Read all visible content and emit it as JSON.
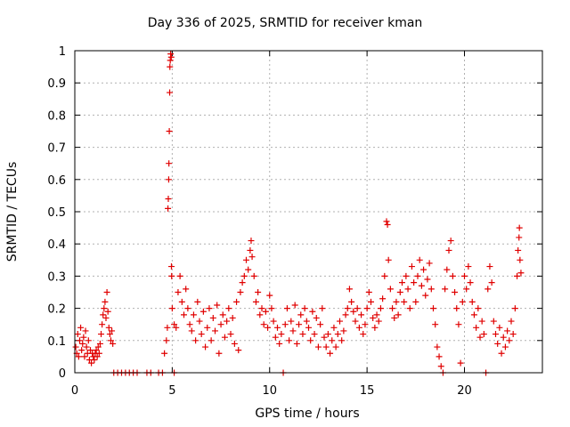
{
  "chart_data": {
    "type": "scatter",
    "title": "Day 336 of 2025, SRMTID for receiver kman",
    "xlabel": "GPS time / hours",
    "ylabel": "SRMTID / TECUs",
    "xlim": [
      0,
      24
    ],
    "ylim": [
      0,
      1
    ],
    "xticks": [
      0,
      5,
      10,
      15,
      20
    ],
    "xtick_labels": [
      "0",
      "5",
      "10",
      "15",
      "20"
    ],
    "yticks": [
      0,
      0.1,
      0.2,
      0.3,
      0.4,
      0.5,
      0.6,
      0.7,
      0.8,
      0.9,
      1
    ],
    "ytick_labels": [
      "0",
      "0.1",
      "0.2",
      "0.3",
      "0.4",
      "0.5",
      "0.6",
      "0.7",
      "0.8",
      "0.9",
      "1"
    ],
    "grid": true,
    "marker": "+",
    "color": "#e00000",
    "series": [
      {
        "name": "SRMTID",
        "points": [
          [
            0.05,
            0.08
          ],
          [
            0.1,
            0.06
          ],
          [
            0.15,
            0.12
          ],
          [
            0.2,
            0.05
          ],
          [
            0.25,
            0.1
          ],
          [
            0.3,
            0.14
          ],
          [
            0.35,
            0.07
          ],
          [
            0.4,
            0.09
          ],
          [
            0.45,
            0.11
          ],
          [
            0.5,
            0.05
          ],
          [
            0.55,
            0.13
          ],
          [
            0.6,
            0.08
          ],
          [
            0.65,
            0.06
          ],
          [
            0.7,
            0.1
          ],
          [
            0.75,
            0.04
          ],
          [
            0.8,
            0.07
          ],
          [
            0.85,
            0.03
          ],
          [
            0.9,
            0.06
          ],
          [
            0.95,
            0.05
          ],
          [
            1.0,
            0.04
          ],
          [
            1.05,
            0.06
          ],
          [
            1.1,
            0.07
          ],
          [
            1.15,
            0.05
          ],
          [
            1.2,
            0.08
          ],
          [
            1.25,
            0.06
          ],
          [
            1.3,
            0.09
          ],
          [
            1.35,
            0.12
          ],
          [
            1.4,
            0.15
          ],
          [
            1.45,
            0.18
          ],
          [
            1.5,
            0.2
          ],
          [
            1.55,
            0.22
          ],
          [
            1.6,
            0.17
          ],
          [
            1.65,
            0.25
          ],
          [
            1.7,
            0.19
          ],
          [
            1.75,
            0.14
          ],
          [
            1.8,
            0.12
          ],
          [
            1.85,
            0.1
          ],
          [
            1.9,
            0.13
          ],
          [
            1.95,
            0.09
          ],
          [
            2.0,
            0.0
          ],
          [
            2.2,
            0.0
          ],
          [
            2.4,
            0.0
          ],
          [
            2.6,
            0.0
          ],
          [
            2.8,
            0.0
          ],
          [
            3.0,
            0.0
          ],
          [
            3.2,
            0.0
          ],
          [
            3.7,
            0.0
          ],
          [
            3.9,
            0.0
          ],
          [
            4.3,
            0.0
          ],
          [
            4.5,
            0.0
          ],
          [
            5.1,
            0.0
          ],
          [
            4.6,
            0.06
          ],
          [
            4.7,
            0.1
          ],
          [
            4.75,
            0.14
          ],
          [
            4.78,
            0.51
          ],
          [
            4.8,
            0.54
          ],
          [
            4.82,
            0.6
          ],
          [
            4.83,
            0.65
          ],
          [
            4.85,
            0.75
          ],
          [
            4.87,
            0.87
          ],
          [
            4.88,
            0.95
          ],
          [
            4.9,
            0.97
          ],
          [
            4.92,
            0.99
          ],
          [
            4.95,
            0.98
          ],
          [
            4.96,
            0.33
          ],
          [
            4.97,
            0.3
          ],
          [
            5.0,
            0.2
          ],
          [
            5.1,
            0.15
          ],
          [
            5.2,
            0.14
          ],
          [
            5.3,
            0.25
          ],
          [
            5.4,
            0.3
          ],
          [
            5.5,
            0.22
          ],
          [
            5.6,
            0.18
          ],
          [
            5.7,
            0.26
          ],
          [
            5.8,
            0.2
          ],
          [
            5.9,
            0.15
          ],
          [
            6.0,
            0.13
          ],
          [
            6.1,
            0.18
          ],
          [
            6.2,
            0.1
          ],
          [
            6.3,
            0.22
          ],
          [
            6.4,
            0.16
          ],
          [
            6.5,
            0.12
          ],
          [
            6.6,
            0.19
          ],
          [
            6.7,
            0.08
          ],
          [
            6.8,
            0.14
          ],
          [
            6.9,
            0.2
          ],
          [
            7.0,
            0.1
          ],
          [
            7.1,
            0.17
          ],
          [
            7.2,
            0.13
          ],
          [
            7.3,
            0.21
          ],
          [
            7.4,
            0.06
          ],
          [
            7.5,
            0.15
          ],
          [
            7.6,
            0.18
          ],
          [
            7.7,
            0.11
          ],
          [
            7.8,
            0.16
          ],
          [
            7.9,
            0.2
          ],
          [
            8.0,
            0.12
          ],
          [
            8.1,
            0.17
          ],
          [
            8.2,
            0.09
          ],
          [
            8.3,
            0.22
          ],
          [
            8.4,
            0.07
          ],
          [
            8.5,
            0.25
          ],
          [
            8.6,
            0.28
          ],
          [
            8.7,
            0.3
          ],
          [
            8.8,
            0.35
          ],
          [
            8.9,
            0.32
          ],
          [
            9.0,
            0.38
          ],
          [
            9.05,
            0.41
          ],
          [
            9.1,
            0.36
          ],
          [
            9.2,
            0.3
          ],
          [
            9.3,
            0.22
          ],
          [
            9.4,
            0.25
          ],
          [
            9.5,
            0.18
          ],
          [
            9.6,
            0.2
          ],
          [
            9.7,
            0.15
          ],
          [
            9.8,
            0.19
          ],
          [
            9.9,
            0.14
          ],
          [
            10.0,
            0.24
          ],
          [
            10.1,
            0.2
          ],
          [
            10.2,
            0.16
          ],
          [
            10.3,
            0.11
          ],
          [
            10.4,
            0.14
          ],
          [
            10.5,
            0.09
          ],
          [
            10.6,
            0.12
          ],
          [
            10.7,
            0.0
          ],
          [
            10.8,
            0.15
          ],
          [
            10.9,
            0.2
          ],
          [
            11.0,
            0.1
          ],
          [
            11.1,
            0.16
          ],
          [
            11.2,
            0.13
          ],
          [
            11.3,
            0.21
          ],
          [
            11.4,
            0.09
          ],
          [
            11.5,
            0.15
          ],
          [
            11.6,
            0.18
          ],
          [
            11.7,
            0.12
          ],
          [
            11.8,
            0.2
          ],
          [
            11.9,
            0.16
          ],
          [
            12.0,
            0.14
          ],
          [
            12.1,
            0.1
          ],
          [
            12.2,
            0.19
          ],
          [
            12.3,
            0.12
          ],
          [
            12.4,
            0.17
          ],
          [
            12.5,
            0.08
          ],
          [
            12.6,
            0.15
          ],
          [
            12.7,
            0.2
          ],
          [
            12.8,
            0.11
          ],
          [
            12.9,
            0.08
          ],
          [
            13.0,
            0.12
          ],
          [
            13.1,
            0.06
          ],
          [
            13.2,
            0.1
          ],
          [
            13.3,
            0.14
          ],
          [
            13.4,
            0.08
          ],
          [
            13.5,
            0.12
          ],
          [
            13.6,
            0.16
          ],
          [
            13.7,
            0.1
          ],
          [
            13.8,
            0.13
          ],
          [
            13.9,
            0.18
          ],
          [
            14.0,
            0.2
          ],
          [
            14.1,
            0.26
          ],
          [
            14.2,
            0.22
          ],
          [
            14.3,
            0.19
          ],
          [
            14.4,
            0.16
          ],
          [
            14.5,
            0.2
          ],
          [
            14.6,
            0.14
          ],
          [
            14.7,
            0.18
          ],
          [
            14.8,
            0.12
          ],
          [
            14.9,
            0.15
          ],
          [
            15.0,
            0.2
          ],
          [
            15.1,
            0.25
          ],
          [
            15.2,
            0.22
          ],
          [
            15.3,
            0.17
          ],
          [
            15.4,
            0.14
          ],
          [
            15.5,
            0.18
          ],
          [
            15.6,
            0.16
          ],
          [
            15.7,
            0.2
          ],
          [
            15.8,
            0.23
          ],
          [
            15.9,
            0.3
          ],
          [
            16.0,
            0.47
          ],
          [
            16.05,
            0.46
          ],
          [
            16.1,
            0.35
          ],
          [
            16.2,
            0.26
          ],
          [
            16.3,
            0.2
          ],
          [
            16.4,
            0.17
          ],
          [
            16.5,
            0.22
          ],
          [
            16.6,
            0.18
          ],
          [
            16.7,
            0.25
          ],
          [
            16.8,
            0.28
          ],
          [
            16.9,
            0.22
          ],
          [
            17.0,
            0.3
          ],
          [
            17.1,
            0.26
          ],
          [
            17.2,
            0.2
          ],
          [
            17.3,
            0.33
          ],
          [
            17.4,
            0.28
          ],
          [
            17.5,
            0.22
          ],
          [
            17.6,
            0.3
          ],
          [
            17.7,
            0.35
          ],
          [
            17.8,
            0.27
          ],
          [
            17.9,
            0.32
          ],
          [
            18.0,
            0.24
          ],
          [
            18.1,
            0.29
          ],
          [
            18.2,
            0.34
          ],
          [
            18.3,
            0.26
          ],
          [
            18.4,
            0.2
          ],
          [
            18.5,
            0.15
          ],
          [
            18.6,
            0.08
          ],
          [
            18.7,
            0.05
          ],
          [
            18.8,
            0.02
          ],
          [
            18.9,
            0.0
          ],
          [
            19.0,
            0.26
          ],
          [
            19.1,
            0.32
          ],
          [
            19.2,
            0.38
          ],
          [
            19.3,
            0.41
          ],
          [
            19.4,
            0.3
          ],
          [
            19.5,
            0.25
          ],
          [
            19.6,
            0.2
          ],
          [
            19.7,
            0.15
          ],
          [
            19.8,
            0.03
          ],
          [
            19.9,
            0.22
          ],
          [
            20.0,
            0.3
          ],
          [
            20.1,
            0.26
          ],
          [
            20.2,
            0.33
          ],
          [
            20.3,
            0.28
          ],
          [
            20.4,
            0.22
          ],
          [
            20.5,
            0.18
          ],
          [
            20.6,
            0.14
          ],
          [
            20.7,
            0.2
          ],
          [
            20.8,
            0.11
          ],
          [
            20.9,
            0.16
          ],
          [
            21.0,
            0.12
          ],
          [
            21.1,
            0.0
          ],
          [
            21.2,
            0.26
          ],
          [
            21.3,
            0.33
          ],
          [
            21.4,
            0.28
          ],
          [
            21.5,
            0.16
          ],
          [
            21.6,
            0.12
          ],
          [
            21.7,
            0.09
          ],
          [
            21.8,
            0.14
          ],
          [
            21.9,
            0.06
          ],
          [
            22.0,
            0.11
          ],
          [
            22.1,
            0.08
          ],
          [
            22.2,
            0.13
          ],
          [
            22.3,
            0.1
          ],
          [
            22.4,
            0.16
          ],
          [
            22.5,
            0.12
          ],
          [
            22.6,
            0.2
          ],
          [
            22.7,
            0.3
          ],
          [
            22.75,
            0.38
          ],
          [
            22.8,
            0.42
          ],
          [
            22.82,
            0.45
          ],
          [
            22.85,
            0.35
          ],
          [
            22.9,
            0.31
          ]
        ]
      }
    ]
  }
}
